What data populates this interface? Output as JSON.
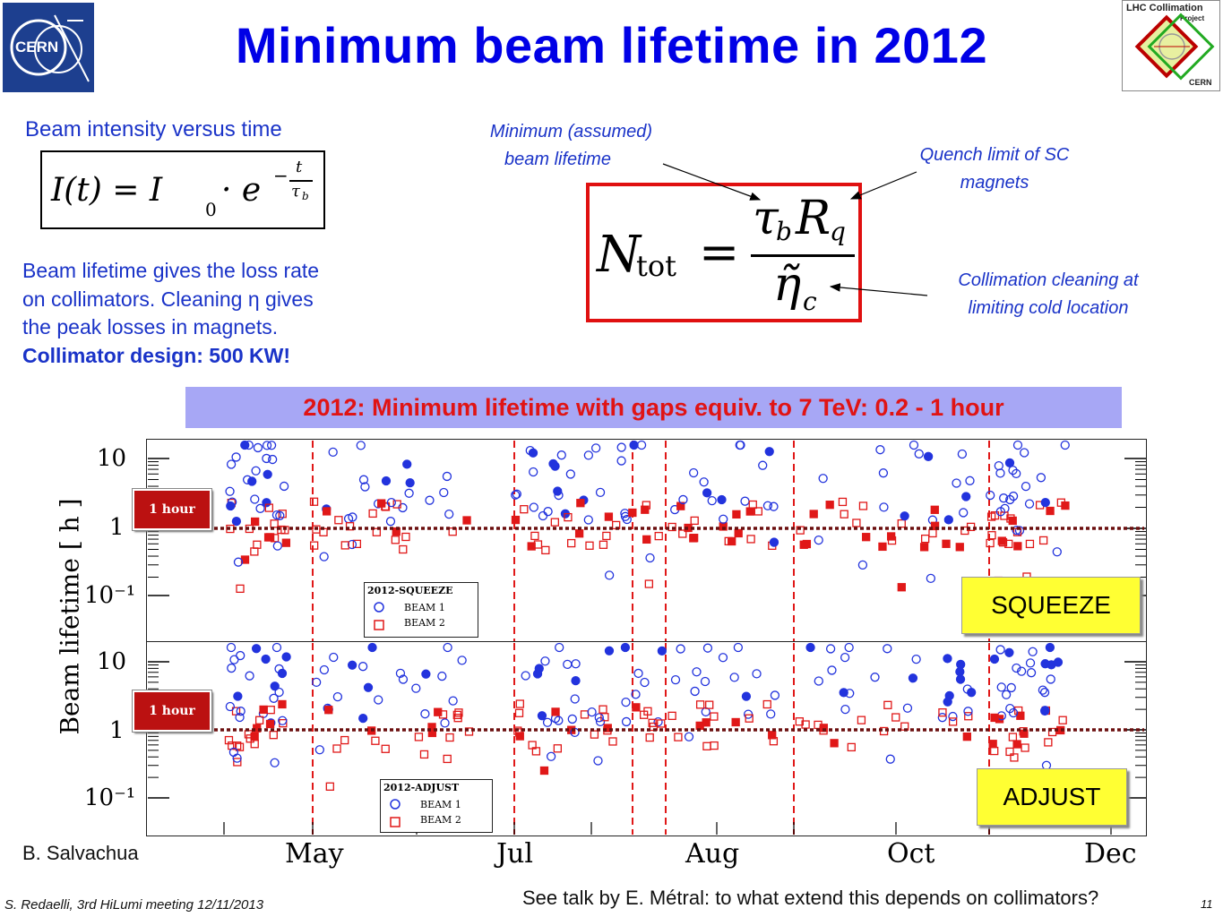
{
  "slide": {
    "title": "Minimum beam lifetime in 2012",
    "logo_left_text": "CERN",
    "logo_right_lines": [
      "LHC Collimation",
      "Project",
      "CERN"
    ]
  },
  "left": {
    "intensity_heading": "Beam intensity versus time",
    "formula_lhs": "I(t) = I",
    "formula_sub": "0",
    "formula_mid": "· e",
    "formula_exp_num": "t",
    "formula_exp_den": "τ",
    "formula_exp_den_sub": "b",
    "para_line1": "Beam lifetime gives the loss rate",
    "para_line2": "on collimators. Cleaning η gives",
    "para_line3": "the peak losses in magnets.",
    "para_bold": "Collimator design: 500 KW!"
  },
  "ntot": {
    "lhs": "N",
    "lhs_sub": "tot",
    "equals": "=",
    "num": "τ",
    "num_sub": "b",
    "num_r": "R",
    "num_r_sub": "q",
    "den": "η̃",
    "den_sub": "c",
    "ann_lifetime_l1": "Minimum (assumed)",
    "ann_lifetime_l2": "beam lifetime",
    "ann_quench_l1": "Quench limit of SC",
    "ann_quench_l2": "magnets",
    "ann_coll_l1": "Collimation cleaning at",
    "ann_coll_l2": "limiting cold location"
  },
  "banner": "2012: Minimum lifetime with gaps equiv. to 7 TeV: 0.2 - 1 hour",
  "chart_data": {
    "type": "scatter",
    "ylabel": "Beam lifetime [ h ]",
    "yscale": "log",
    "ylim": [
      0.02,
      20
    ],
    "x_tick_labels": [
      "May",
      "Jul",
      "Aug",
      "Oct",
      "Dec"
    ],
    "y_tick_labels": [
      "10",
      "1",
      "10⁻¹"
    ],
    "reference_line_label": "1 hour",
    "reference_line_value": 1,
    "panels": [
      {
        "name": "SQUEEZE",
        "legend_title": "2012-SQUEEZE",
        "series": [
          {
            "name": "BEAM 1",
            "color": "#2233dd"
          },
          {
            "name": "BEAM 2",
            "color": "#e01818"
          }
        ]
      },
      {
        "name": "ADJUST",
        "legend_title": "2012-ADJUST",
        "series": [
          {
            "name": "BEAM 1",
            "color": "#2233dd"
          },
          {
            "name": "BEAM 2",
            "color": "#e01818"
          }
        ]
      }
    ]
  },
  "credit": "B. Salvachua",
  "footer": {
    "left": "S. Redaelli, 3rd HiLumi meeting 12/11/2013",
    "center": "See talk by E. Métral: to what extend this depends on collimators?",
    "page": "11"
  },
  "colors": {
    "title": "#0000e6",
    "text_blue": "#1a33c8",
    "red": "#e01010",
    "banner_bg": "#a7a7f5",
    "tag_yellow": "#ffff33",
    "hour_line": "#6b0f0f"
  }
}
